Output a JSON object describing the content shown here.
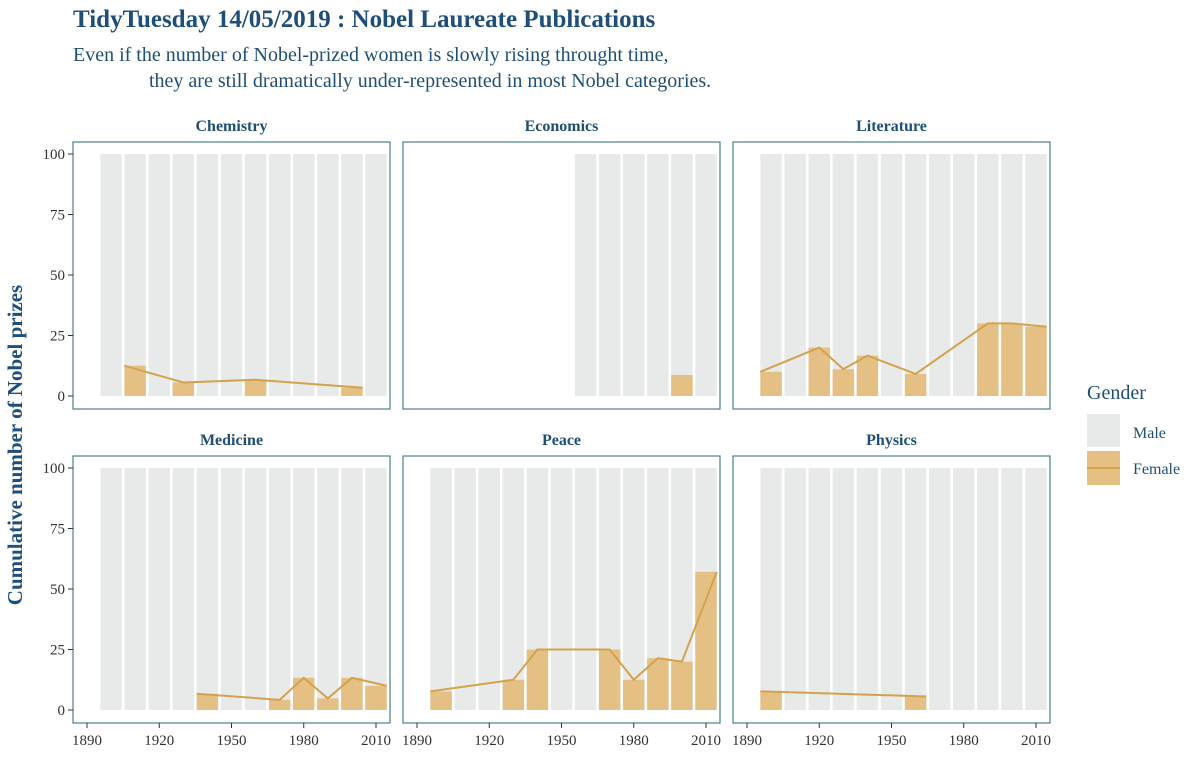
{
  "title": "TidyTuesday 14/05/2019 : Nobel Laureate Publications",
  "subtitle_line1": "Even if the number of Nobel-prized women is slowly rising throught time,",
  "subtitle_line2": "they are still dramatically under-represented in most Nobel categories.",
  "colors": {
    "male": "#e8eaea",
    "female": "#e5c085",
    "female_line": "#d4a24c",
    "text": "#1f4e79",
    "panel_border": "#4d7f8c"
  },
  "chart_data": {
    "type": "bar",
    "ylabel": "Cumulative number of Nobel prizes",
    "xlabel": "",
    "ylim": [
      0,
      100
    ],
    "yticks": [
      0,
      25,
      50,
      75,
      100
    ],
    "xlim": [
      1890,
      2010
    ],
    "xticks": [
      1890,
      1920,
      1950,
      1980,
      2010
    ],
    "x_tick_labels": [
      "1890",
      "1920",
      "1950",
      "1980",
      "2010"
    ],
    "legend": {
      "title": "Gender",
      "position": "right",
      "entries": [
        "Male",
        "Female"
      ]
    },
    "facets": [
      {
        "name": "Chemistry",
        "male_decades": [
          1900,
          1910,
          1920,
          1930,
          1940,
          1950,
          1960,
          1970,
          1980,
          1990,
          2000,
          2010
        ],
        "female_percent": [
          {
            "decade": 1910,
            "value": 12.5
          },
          {
            "decade": 1930,
            "value": 5.6
          },
          {
            "decade": 1960,
            "value": 6.7
          },
          {
            "decade": 2000,
            "value": 3.4
          }
        ]
      },
      {
        "name": "Economics",
        "male_decades": [
          1960,
          1970,
          1980,
          1990,
          2000,
          2010
        ],
        "female_percent": [
          {
            "decade": 2000,
            "value": 8.7
          }
        ]
      },
      {
        "name": "Literature",
        "male_decades": [
          1900,
          1910,
          1920,
          1930,
          1940,
          1950,
          1960,
          1970,
          1980,
          1990,
          2000,
          2010
        ],
        "female_percent": [
          {
            "decade": 1900,
            "value": 10
          },
          {
            "decade": 1920,
            "value": 20
          },
          {
            "decade": 1930,
            "value": 11.1
          },
          {
            "decade": 1940,
            "value": 16.7
          },
          {
            "decade": 1960,
            "value": 9.1
          },
          {
            "decade": 1990,
            "value": 30
          },
          {
            "decade": 2000,
            "value": 30
          },
          {
            "decade": 2010,
            "value": 28.6
          }
        ]
      },
      {
        "name": "Medicine",
        "male_decades": [
          1900,
          1910,
          1920,
          1930,
          1940,
          1950,
          1960,
          1970,
          1980,
          1990,
          2000,
          2010
        ],
        "female_percent": [
          {
            "decade": 1940,
            "value": 6.7
          },
          {
            "decade": 1970,
            "value": 4.2
          },
          {
            "decade": 1980,
            "value": 13.3
          },
          {
            "decade": 1990,
            "value": 4.8
          },
          {
            "decade": 2000,
            "value": 13.3
          },
          {
            "decade": 2010,
            "value": 10
          }
        ]
      },
      {
        "name": "Peace",
        "male_decades": [
          1900,
          1910,
          1920,
          1930,
          1940,
          1950,
          1960,
          1970,
          1980,
          1990,
          2000,
          2010
        ],
        "female_percent": [
          {
            "decade": 1900,
            "value": 7.7
          },
          {
            "decade": 1930,
            "value": 12.5
          },
          {
            "decade": 1940,
            "value": 25
          },
          {
            "decade": 1970,
            "value": 25
          },
          {
            "decade": 1980,
            "value": 12.5
          },
          {
            "decade": 1990,
            "value": 21.4
          },
          {
            "decade": 2000,
            "value": 20
          },
          {
            "decade": 2010,
            "value": 57.1
          }
        ]
      },
      {
        "name": "Physics",
        "male_decades": [
          1900,
          1910,
          1920,
          1930,
          1940,
          1950,
          1960,
          1970,
          1980,
          1990,
          2000,
          2010
        ],
        "female_percent": [
          {
            "decade": 1900,
            "value": 7.7
          },
          {
            "decade": 1960,
            "value": 5.6
          }
        ]
      }
    ]
  }
}
